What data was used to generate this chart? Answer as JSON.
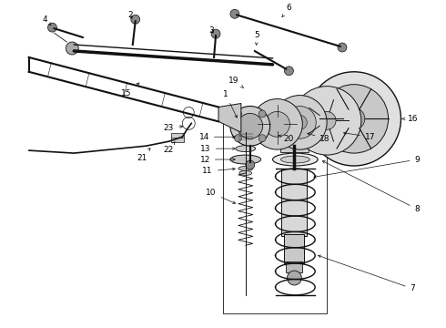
{
  "bg_color": "#ffffff",
  "line_color": "#111111",
  "label_color": "#000000",
  "label_fontsize": 6.5,
  "figw": 4.9,
  "figh": 3.6,
  "dpi": 100
}
